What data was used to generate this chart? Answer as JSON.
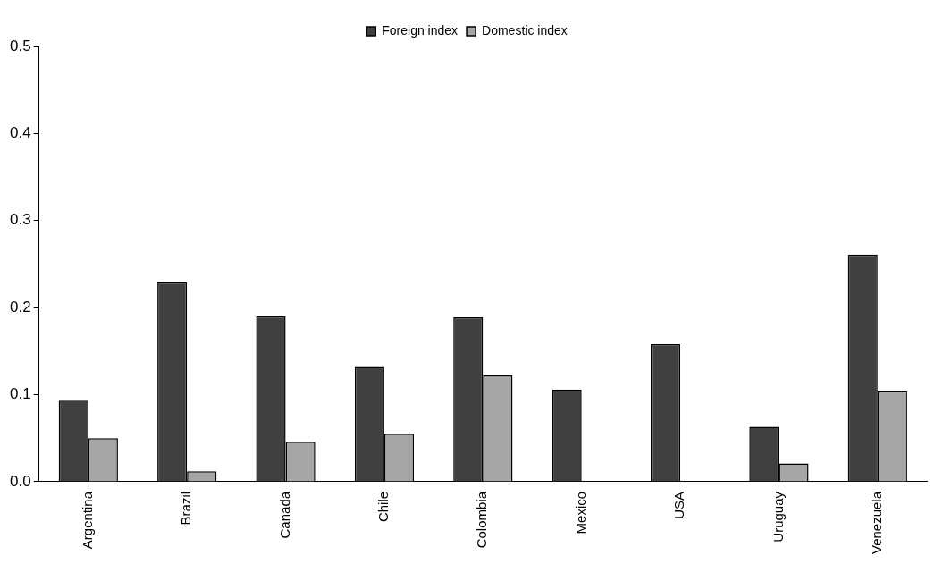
{
  "chart_data": {
    "type": "bar",
    "categories": [
      "Argentina",
      "Brazil",
      "Canada",
      "Chile",
      "Colombia",
      "Mexico",
      "USA",
      "Uruguay",
      "Venezuela"
    ],
    "series": [
      {
        "name": "Foreign index",
        "color": "#404040",
        "values": [
          0.093,
          0.229,
          0.19,
          0.132,
          0.189,
          0.106,
          0.158,
          0.063,
          0.261
        ]
      },
      {
        "name": "Domestic index",
        "color": "#a6a6a6",
        "values": [
          0.05,
          0.012,
          0.046,
          0.055,
          0.122,
          null,
          null,
          0.021,
          0.104
        ]
      }
    ],
    "ylim": [
      0,
      0.5
    ],
    "yticks": [
      {
        "value": 0,
        "label": "0.0"
      },
      0.1,
      0.2,
      0.3,
      0.4,
      0.5
    ],
    "grid": false,
    "legend": "top"
  }
}
